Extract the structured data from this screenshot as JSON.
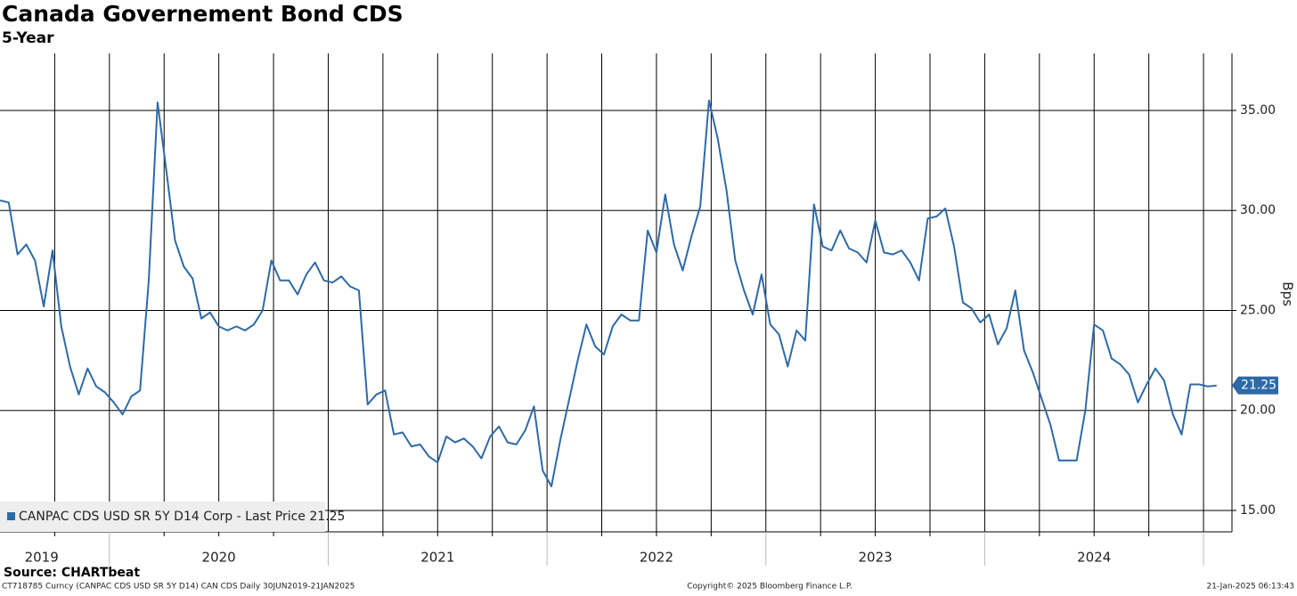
{
  "chart_data": {
    "type": "line",
    "title": "Canada Governement Bond CDS",
    "subtitle": "5-Year",
    "y_axis_label": "Bps",
    "source": "Source: CHARTbeat",
    "footer_left": "CT718785 Curncy (CANPAC CDS USD SR 5Y D14) CAN CDS  Daily 30JUN2019-21JAN2025",
    "footer_center": "Copyright© 2025 Bloomberg Finance L.P.",
    "footer_right": "21-Jan-2025 06:13:43",
    "x": [
      2019.5,
      2019.54,
      2019.58,
      2019.62,
      2019.66,
      2019.7,
      2019.74,
      2019.78,
      2019.82,
      2019.86,
      2019.9,
      2019.94,
      2019.98,
      2020.02,
      2020.06,
      2020.1,
      2020.14,
      2020.18,
      2020.22,
      2020.26,
      2020.3,
      2020.34,
      2020.38,
      2020.42,
      2020.46,
      2020.5,
      2020.54,
      2020.58,
      2020.62,
      2020.66,
      2020.7,
      2020.74,
      2020.78,
      2020.82,
      2020.86,
      2020.9,
      2020.94,
      2020.98,
      2021.02,
      2021.06,
      2021.1,
      2021.14,
      2021.18,
      2021.22,
      2021.26,
      2021.3,
      2021.34,
      2021.38,
      2021.42,
      2021.46,
      2021.5,
      2021.54,
      2021.58,
      2021.62,
      2021.66,
      2021.7,
      2021.74,
      2021.78,
      2021.82,
      2021.86,
      2021.9,
      2021.94,
      2021.98,
      2022.02,
      2022.06,
      2022.1,
      2022.14,
      2022.18,
      2022.22,
      2022.26,
      2022.3,
      2022.34,
      2022.38,
      2022.42,
      2022.46,
      2022.5,
      2022.54,
      2022.58,
      2022.62,
      2022.66,
      2022.7,
      2022.74,
      2022.78,
      2022.82,
      2022.86,
      2022.9,
      2022.94,
      2022.98,
      2023.02,
      2023.06,
      2023.1,
      2023.14,
      2023.18,
      2023.22,
      2023.26,
      2023.3,
      2023.34,
      2023.38,
      2023.42,
      2023.46,
      2023.5,
      2023.54,
      2023.58,
      2023.62,
      2023.66,
      2023.7,
      2023.74,
      2023.78,
      2023.82,
      2023.86,
      2023.9,
      2023.94,
      2023.98,
      2024.02,
      2024.06,
      2024.1,
      2024.14,
      2024.18,
      2024.22,
      2024.26,
      2024.3,
      2024.34,
      2024.38,
      2024.42,
      2024.46,
      2024.5,
      2024.54,
      2024.58,
      2024.62,
      2024.66,
      2024.7,
      2024.74,
      2024.78,
      2024.82,
      2024.86,
      2024.9,
      2024.94,
      2024.98,
      2025.02,
      2025.06
    ],
    "series": [
      {
        "name": "CANPAC CDS USD SR 5Y D14 Corp - Last Price 21.25",
        "color": "#2e6aa6",
        "values": [
          30.5,
          30.4,
          27.8,
          28.3,
          27.5,
          25.2,
          28.0,
          24.2,
          22.2,
          20.8,
          22.1,
          21.2,
          20.9,
          20.4,
          19.8,
          20.7,
          21.0,
          26.5,
          35.4,
          32.0,
          28.5,
          27.2,
          26.6,
          24.6,
          24.9,
          24.2,
          24.0,
          24.2,
          24.0,
          24.3,
          25.0,
          27.5,
          26.5,
          26.5,
          25.8,
          26.8,
          27.4,
          26.5,
          26.4,
          26.7,
          26.2,
          26.0,
          20.3,
          20.8,
          21.0,
          18.8,
          18.9,
          18.2,
          18.3,
          17.7,
          17.4,
          18.7,
          18.4,
          18.6,
          18.2,
          17.6,
          18.7,
          19.2,
          18.4,
          18.3,
          19.0,
          20.2,
          17.0,
          16.2,
          18.5,
          20.5,
          22.5,
          24.3,
          23.2,
          22.8,
          24.2,
          24.8,
          24.5,
          24.5,
          29.0,
          27.9,
          30.8,
          28.3,
          27.0,
          28.7,
          30.2,
          35.5,
          33.6,
          31.0,
          27.5,
          26.0,
          24.8,
          26.8,
          24.3,
          23.8,
          22.2,
          24.0,
          23.5,
          30.3,
          28.2,
          28.0,
          29.0,
          28.1,
          27.9,
          27.4,
          29.5,
          27.9,
          27.8,
          28.0,
          27.4,
          26.5,
          29.6,
          29.7,
          30.1,
          28.2,
          25.4,
          25.1,
          24.4,
          24.8,
          23.3,
          24.1,
          26.0,
          23.0,
          21.9,
          20.6,
          19.3,
          17.5,
          17.5,
          17.5,
          20.0,
          24.3,
          24.0,
          22.6,
          22.3,
          21.8,
          20.4,
          21.3,
          22.1,
          21.5,
          19.8,
          18.8,
          21.3,
          21.3,
          21.2,
          21.25
        ]
      }
    ],
    "xlim": [
      2019.5,
      2025.13
    ],
    "xticks": [
      {
        "value": 2019.69,
        "label": "2019"
      },
      {
        "value": 2020.5,
        "label": "2020"
      },
      {
        "value": 2021.5,
        "label": "2021"
      },
      {
        "value": 2022.5,
        "label": "2022"
      },
      {
        "value": 2023.5,
        "label": "2023"
      },
      {
        "value": 2024.5,
        "label": "2024"
      }
    ],
    "xgrid": [
      2019.75,
      2020,
      2020.25,
      2020.5,
      2020.75,
      2021,
      2021.25,
      2021.5,
      2021.75,
      2022,
      2022.25,
      2022.5,
      2022.75,
      2023,
      2023.25,
      2023.5,
      2023.75,
      2024,
      2024.25,
      2024.5,
      2024.75,
      2025
    ],
    "ylim": [
      13.93,
      37.85
    ],
    "yticks": [
      {
        "value": 15,
        "label": "15.00"
      },
      {
        "value": 20,
        "label": "20.00"
      },
      {
        "value": 25,
        "label": "25.00"
      },
      {
        "value": 30,
        "label": "30.00"
      },
      {
        "value": 35,
        "label": "35.00"
      }
    ],
    "grid": true
  }
}
